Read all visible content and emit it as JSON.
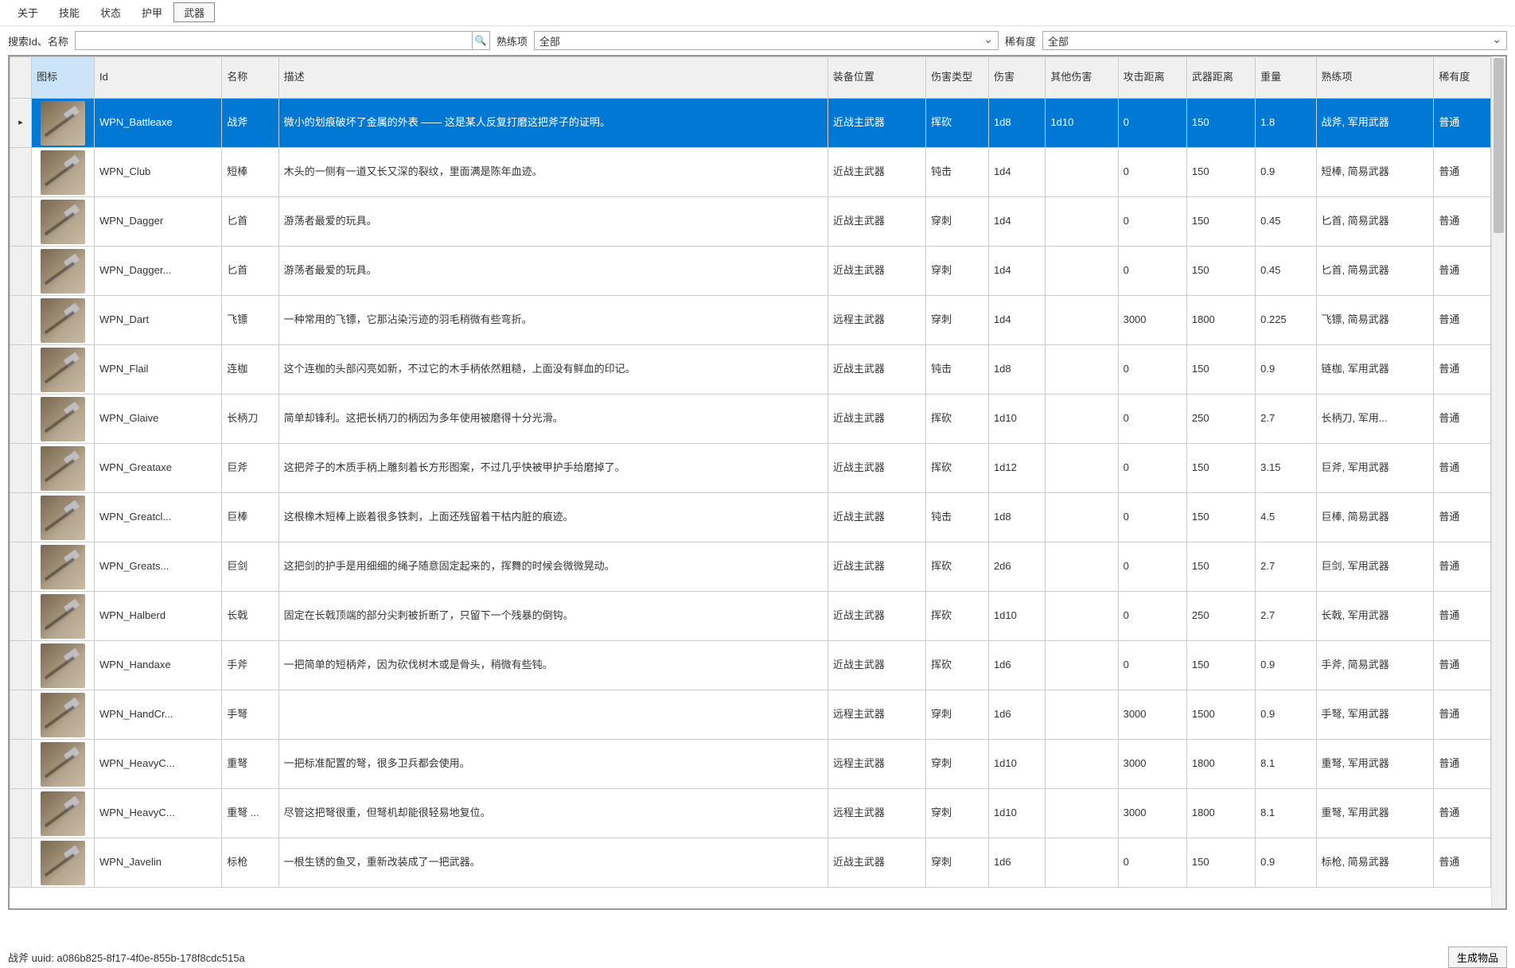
{
  "tabs": {
    "items": [
      "关于",
      "技能",
      "状态",
      "护甲",
      "武器"
    ],
    "active_index": 4
  },
  "filter": {
    "search_label": "搜索Id、名称",
    "search_value": "",
    "proficiency_label": "熟练项",
    "proficiency_value": "全部",
    "rarity_label": "稀有度",
    "rarity_value": "全部"
  },
  "columns": {
    "marker": "",
    "icon": "图标",
    "id": "Id",
    "name": "名称",
    "desc": "描述",
    "slot": "装备位置",
    "dmg_type": "伤害类型",
    "dmg": "伤害",
    "other_dmg": "其他伤害",
    "atk_range": "攻击距离",
    "wpn_range": "武器距离",
    "weight": "重量",
    "prof": "熟练项",
    "rarity": "稀有度"
  },
  "column_widths": {
    "marker": "22px",
    "icon": "64px",
    "id": "130px",
    "name": "58px",
    "desc": "560px",
    "slot": "100px",
    "dmg_type": "64px",
    "dmg": "58px",
    "other_dmg": "74px",
    "atk_range": "70px",
    "wpn_range": "70px",
    "weight": "62px",
    "prof": "120px",
    "rarity": "58px"
  },
  "rows": [
    {
      "id": "WPN_Battleaxe",
      "name": "战斧",
      "desc": "微小的划痕破坏了金属的外表 —— 这是某人反复打磨这把斧子的证明。",
      "slot": "近战主武器",
      "dmg_type": "挥砍",
      "dmg": "1d8",
      "other_dmg": "1d10",
      "atk_range": "0",
      "wpn_range": "150",
      "weight": "1.8",
      "prof": "战斧, 军用武器",
      "rarity": "普通",
      "selected": true
    },
    {
      "id": "WPN_Club",
      "name": "短棒",
      "desc": "木头的一侧有一道又长又深的裂纹，里面满是陈年血迹。",
      "slot": "近战主武器",
      "dmg_type": "钝击",
      "dmg": "1d4",
      "other_dmg": "",
      "atk_range": "0",
      "wpn_range": "150",
      "weight": "0.9",
      "prof": "短棒, 简易武器",
      "rarity": "普通"
    },
    {
      "id": "WPN_Dagger",
      "name": "匕首",
      "desc": "游荡者最爱的玩具。",
      "slot": "近战主武器",
      "dmg_type": "穿刺",
      "dmg": "1d4",
      "other_dmg": "",
      "atk_range": "0",
      "wpn_range": "150",
      "weight": "0.45",
      "prof": "匕首, 简易武器",
      "rarity": "普通"
    },
    {
      "id": "WPN_Dagger...",
      "name": "匕首",
      "desc": "游荡者最爱的玩具。",
      "slot": "近战主武器",
      "dmg_type": "穿刺",
      "dmg": "1d4",
      "other_dmg": "",
      "atk_range": "0",
      "wpn_range": "150",
      "weight": "0.45",
      "prof": "匕首, 简易武器",
      "rarity": "普通"
    },
    {
      "id": "WPN_Dart",
      "name": "飞镖",
      "desc": "一种常用的飞镖，它那沾染污迹的羽毛稍微有些弯折。",
      "slot": "远程主武器",
      "dmg_type": "穿刺",
      "dmg": "1d4",
      "other_dmg": "",
      "atk_range": "3000",
      "wpn_range": "1800",
      "weight": "0.225",
      "prof": "飞镖, 简易武器",
      "rarity": "普通"
    },
    {
      "id": "WPN_Flail",
      "name": "连枷",
      "desc": "这个连枷的头部闪亮如新，不过它的木手柄依然粗糙，上面没有鲜血的印记。",
      "slot": "近战主武器",
      "dmg_type": "钝击",
      "dmg": "1d8",
      "other_dmg": "",
      "atk_range": "0",
      "wpn_range": "150",
      "weight": "0.9",
      "prof": "链枷, 军用武器",
      "rarity": "普通"
    },
    {
      "id": "WPN_Glaive",
      "name": "长柄刀",
      "desc": "简单却锋利。这把长柄刀的柄因为多年使用被磨得十分光滑。",
      "slot": "近战主武器",
      "dmg_type": "挥砍",
      "dmg": "1d10",
      "other_dmg": "",
      "atk_range": "0",
      "wpn_range": "250",
      "weight": "2.7",
      "prof": "长柄刀, 军用...",
      "rarity": "普通"
    },
    {
      "id": "WPN_Greataxe",
      "name": "巨斧",
      "desc": "这把斧子的木质手柄上雕刻着长方形图案，不过几乎快被甲护手给磨掉了。",
      "slot": "近战主武器",
      "dmg_type": "挥砍",
      "dmg": "1d12",
      "other_dmg": "",
      "atk_range": "0",
      "wpn_range": "150",
      "weight": "3.15",
      "prof": "巨斧, 军用武器",
      "rarity": "普通"
    },
    {
      "id": "WPN_Greatcl...",
      "name": "巨棒",
      "desc": "这根橡木短棒上嵌着很多铁刺，上面还残留着干枯内脏的痕迹。",
      "slot": "近战主武器",
      "dmg_type": "钝击",
      "dmg": "1d8",
      "other_dmg": "",
      "atk_range": "0",
      "wpn_range": "150",
      "weight": "4.5",
      "prof": "巨棒, 简易武器",
      "rarity": "普通"
    },
    {
      "id": "WPN_Greats...",
      "name": "巨剑",
      "desc": "这把剑的护手是用细细的绳子随意固定起来的，挥舞的时候会微微晃动。",
      "slot": "近战主武器",
      "dmg_type": "挥砍",
      "dmg": "2d6",
      "other_dmg": "",
      "atk_range": "0",
      "wpn_range": "150",
      "weight": "2.7",
      "prof": "巨剑, 军用武器",
      "rarity": "普通"
    },
    {
      "id": "WPN_Halberd",
      "name": "长戟",
      "desc": "固定在长戟顶端的部分尖刺被折断了，只留下一个残暴的倒钩。",
      "slot": "近战主武器",
      "dmg_type": "挥砍",
      "dmg": "1d10",
      "other_dmg": "",
      "atk_range": "0",
      "wpn_range": "250",
      "weight": "2.7",
      "prof": "长戟, 军用武器",
      "rarity": "普通"
    },
    {
      "id": "WPN_Handaxe",
      "name": "手斧",
      "desc": "一把简单的短柄斧，因为砍伐树木或是骨头，稍微有些钝。",
      "slot": "近战主武器",
      "dmg_type": "挥砍",
      "dmg": "1d6",
      "other_dmg": "",
      "atk_range": "0",
      "wpn_range": "150",
      "weight": "0.9",
      "prof": "手斧, 简易武器",
      "rarity": "普通"
    },
    {
      "id": "WPN_HandCr...",
      "name": "手弩",
      "desc": "",
      "slot": "远程主武器",
      "dmg_type": "穿刺",
      "dmg": "1d6",
      "other_dmg": "",
      "atk_range": "3000",
      "wpn_range": "1500",
      "weight": "0.9",
      "prof": "手弩, 军用武器",
      "rarity": "普通"
    },
    {
      "id": "WPN_HeavyC...",
      "name": "重弩",
      "desc": "一把标准配置的弩，很多卫兵都会使用。",
      "slot": "远程主武器",
      "dmg_type": "穿刺",
      "dmg": "1d10",
      "other_dmg": "",
      "atk_range": "3000",
      "wpn_range": "1800",
      "weight": "8.1",
      "prof": "重弩, 军用武器",
      "rarity": "普通"
    },
    {
      "id": "WPN_HeavyC...",
      "name": "重弩 ...",
      "desc": "尽管这把弩很重，但弩机却能很轻易地复位。",
      "slot": "远程主武器",
      "dmg_type": "穿刺",
      "dmg": "1d10",
      "other_dmg": "",
      "atk_range": "3000",
      "wpn_range": "1800",
      "weight": "8.1",
      "prof": "重弩, 军用武器",
      "rarity": "普通"
    },
    {
      "id": "WPN_Javelin",
      "name": "标枪",
      "desc": "一根生锈的鱼叉，重新改装成了一把武器。",
      "slot": "近战主武器",
      "dmg_type": "穿刺",
      "dmg": "1d6",
      "other_dmg": "",
      "atk_range": "0",
      "wpn_range": "150",
      "weight": "0.9",
      "prof": "标枪, 简易武器",
      "rarity": "普通"
    }
  ],
  "footer": {
    "status": "战斧 uuid: a086b825-8f17-4f0e-855b-178f8cdc515a",
    "button": "生成物品"
  },
  "colors": {
    "selected_row": "#0078d4",
    "header_bg": "#f0f0f0",
    "icon_header_bg": "#cce4f7",
    "border": "#cccccc"
  }
}
